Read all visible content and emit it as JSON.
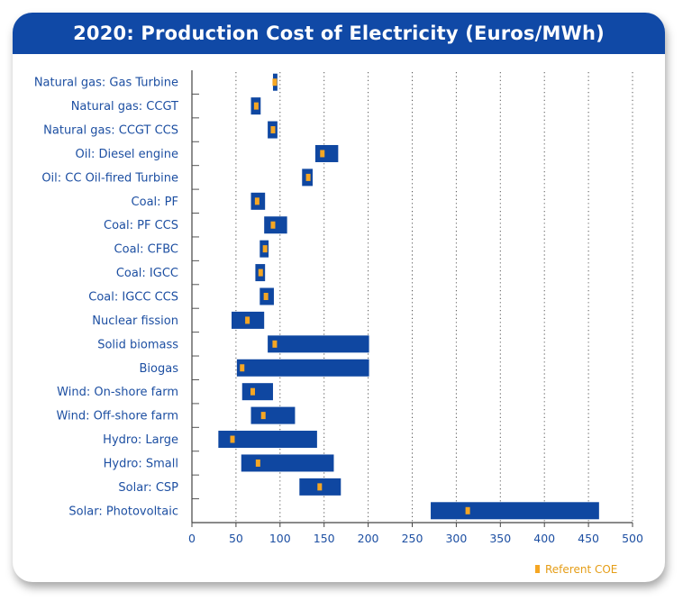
{
  "chart_data": {
    "type": "range-bar",
    "title": "2020: Production Cost of Electricity (Euros/MWh)",
    "xlim": [
      0,
      500
    ],
    "xticks": [
      0,
      50,
      100,
      150,
      200,
      250,
      300,
      350,
      400,
      450,
      500
    ],
    "grid": "vertical dotted",
    "legend": {
      "label": "Referent COE",
      "placement": "bottom-right"
    },
    "colors": {
      "bar": "#0f47a1",
      "marker": "#f5a623",
      "text": "#1d4fa2",
      "title_bg": "#1049a6"
    },
    "categories": [
      {
        "label": "Natural gas: Gas Turbine",
        "min": 92,
        "max": 97,
        "ref": 94
      },
      {
        "label": "Natural gas: CCGT",
        "min": 67,
        "max": 78,
        "ref": 73
      },
      {
        "label": "Natural gas: CCGT CCS",
        "min": 86,
        "max": 97,
        "ref": 92
      },
      {
        "label": "Oil: Diesel engine",
        "min": 140,
        "max": 166,
        "ref": 148
      },
      {
        "label": "Oil: CC Oil-fired Turbine",
        "min": 125,
        "max": 137,
        "ref": 132
      },
      {
        "label": "Coal: PF",
        "min": 67,
        "max": 83,
        "ref": 74
      },
      {
        "label": "Coal: PF CCS",
        "min": 82,
        "max": 108,
        "ref": 92
      },
      {
        "label": "Coal: CFBC",
        "min": 77,
        "max": 87,
        "ref": 83
      },
      {
        "label": "Coal: IGCC",
        "min": 72,
        "max": 83,
        "ref": 78
      },
      {
        "label": "Coal: IGCC CCS",
        "min": 77,
        "max": 93,
        "ref": 84
      },
      {
        "label": "Nuclear fission",
        "min": 45,
        "max": 82,
        "ref": 63
      },
      {
        "label": "Solid biomass",
        "min": 86,
        "max": 201,
        "ref": 94
      },
      {
        "label": "Biogas",
        "min": 51,
        "max": 201,
        "ref": 57
      },
      {
        "label": "Wind: On-shore farm",
        "min": 57,
        "max": 92,
        "ref": 69
      },
      {
        "label": "Wind: Off-shore farm",
        "min": 67,
        "max": 117,
        "ref": 81
      },
      {
        "label": "Hydro: Large",
        "min": 30,
        "max": 142,
        "ref": 46
      },
      {
        "label": "Hydro: Small",
        "min": 56,
        "max": 161,
        "ref": 75
      },
      {
        "label": "Solar: CSP",
        "min": 122,
        "max": 169,
        "ref": 145
      },
      {
        "label": "Solar: Photovoltaic",
        "min": 271,
        "max": 462,
        "ref": 313
      }
    ]
  }
}
